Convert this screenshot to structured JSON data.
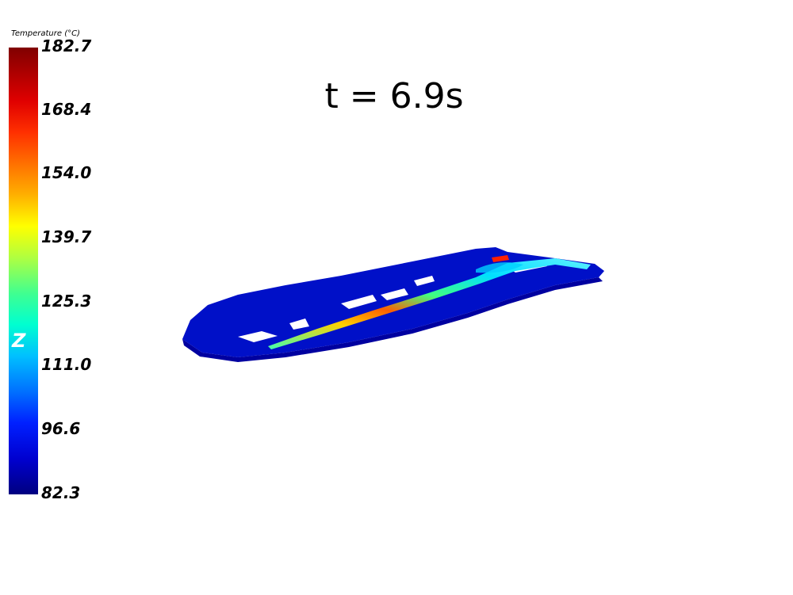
{
  "colorbar": {
    "title": "Temperature (°C)",
    "ticks": [
      "182.7",
      "168.4",
      "154.0",
      "139.7",
      "125.3",
      "111.0",
      "96.6",
      "82.3"
    ],
    "axis_label": "Z",
    "colormap": "jet"
  },
  "annotation": {
    "time": "t = 6.9s"
  }
}
